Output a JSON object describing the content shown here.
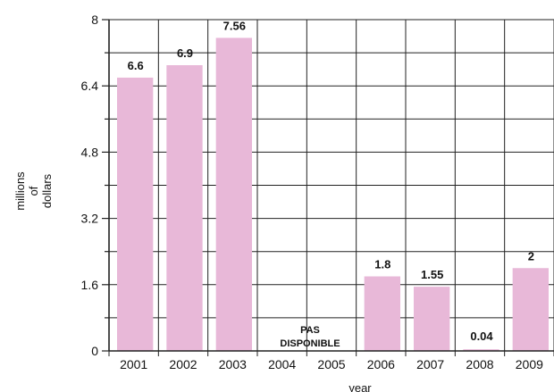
{
  "chart_data": {
    "type": "bar",
    "categories": [
      "2001",
      "2002",
      "2003",
      "2004",
      "2005",
      "2006",
      "2007",
      "2008",
      "2009"
    ],
    "values": [
      6.6,
      6.9,
      7.56,
      null,
      null,
      1.8,
      1.55,
      0.04,
      2
    ],
    "data_labels": [
      "6.6",
      "6.9",
      "7.56",
      "",
      "",
      "1.8",
      "1.55",
      "0.04",
      "2"
    ],
    "ylim": [
      0,
      8
    ],
    "yticks": [
      "0",
      "1.6",
      "3.2",
      "4.8",
      "6.4",
      "8"
    ],
    "ylabel": [
      "millions",
      "of",
      "dollars"
    ],
    "xlabel": "year",
    "annotation": [
      "PAS",
      "DISPONIBLE"
    ],
    "grid": true,
    "bar_color": "#e8b8d8",
    "grid_color": "#222222"
  }
}
